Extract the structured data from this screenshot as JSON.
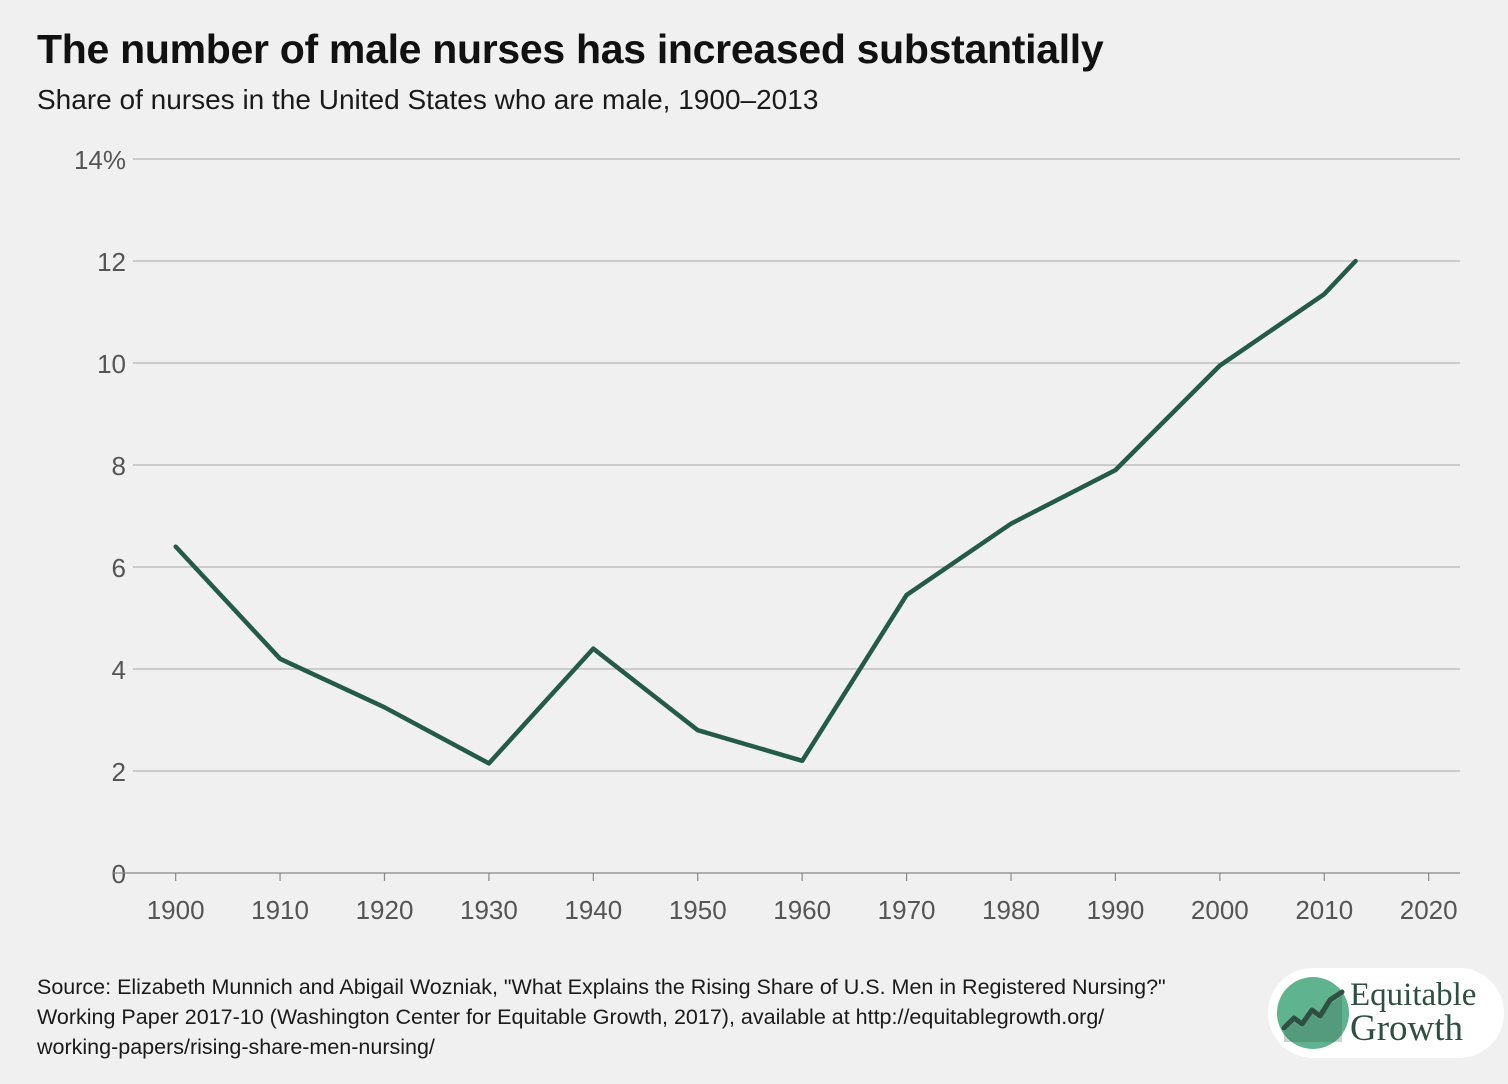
{
  "title": "The number of male nurses has increased substantially",
  "subtitle": "Share of nurses in the United States who are male, 1900–2013",
  "source_lines": [
    "Source: Elizabeth Munnich and Abigail Wozniak, \"What Explains the Rising Share of U.S. Men in Registered Nursing?\"",
    "Working Paper 2017-10 (Washington Center for Equitable Growth, 2017), available at http://equitablegrowth.org/",
    "working-papers/rising-share-men-nursing/"
  ],
  "logo": {
    "line1": "Equitable",
    "line2": "Growth",
    "icon": "rising-line-chart-logo-icon"
  },
  "colors": {
    "line": "#245a48",
    "grid": "#b5b5b5",
    "axis_text": "#555555",
    "logo_green": "#5fb48f",
    "logo_dark": "#2e4f42",
    "background": "#f0f0f0"
  },
  "chart_data": {
    "type": "line",
    "title": "The number of male nurses has increased substantially",
    "subtitle": "Share of nurses in the United States who are male, 1900–2013",
    "xlabel": "",
    "ylabel": "",
    "xlim": [
      1894,
      2023
    ],
    "ylim": [
      0,
      14
    ],
    "x_ticks": [
      1900,
      1910,
      1920,
      1930,
      1940,
      1950,
      1960,
      1970,
      1980,
      1990,
      2000,
      2010,
      2020
    ],
    "y_ticks": [
      0,
      2,
      4,
      6,
      8,
      10,
      12,
      14
    ],
    "y_tick_labels": [
      "0",
      "2",
      "4",
      "6",
      "8",
      "10",
      "12",
      "14%"
    ],
    "grid": "horizontal",
    "legend": "none",
    "series": [
      {
        "x": [
          1900,
          1910,
          1920,
          1930,
          1940,
          1950,
          1960,
          1970,
          1980,
          1990,
          2000,
          2010,
          2013
        ],
        "y": [
          6.4,
          4.2,
          3.25,
          2.15,
          4.4,
          2.8,
          2.2,
          5.45,
          6.85,
          7.9,
          9.95,
          11.35,
          12.0
        ]
      }
    ]
  }
}
